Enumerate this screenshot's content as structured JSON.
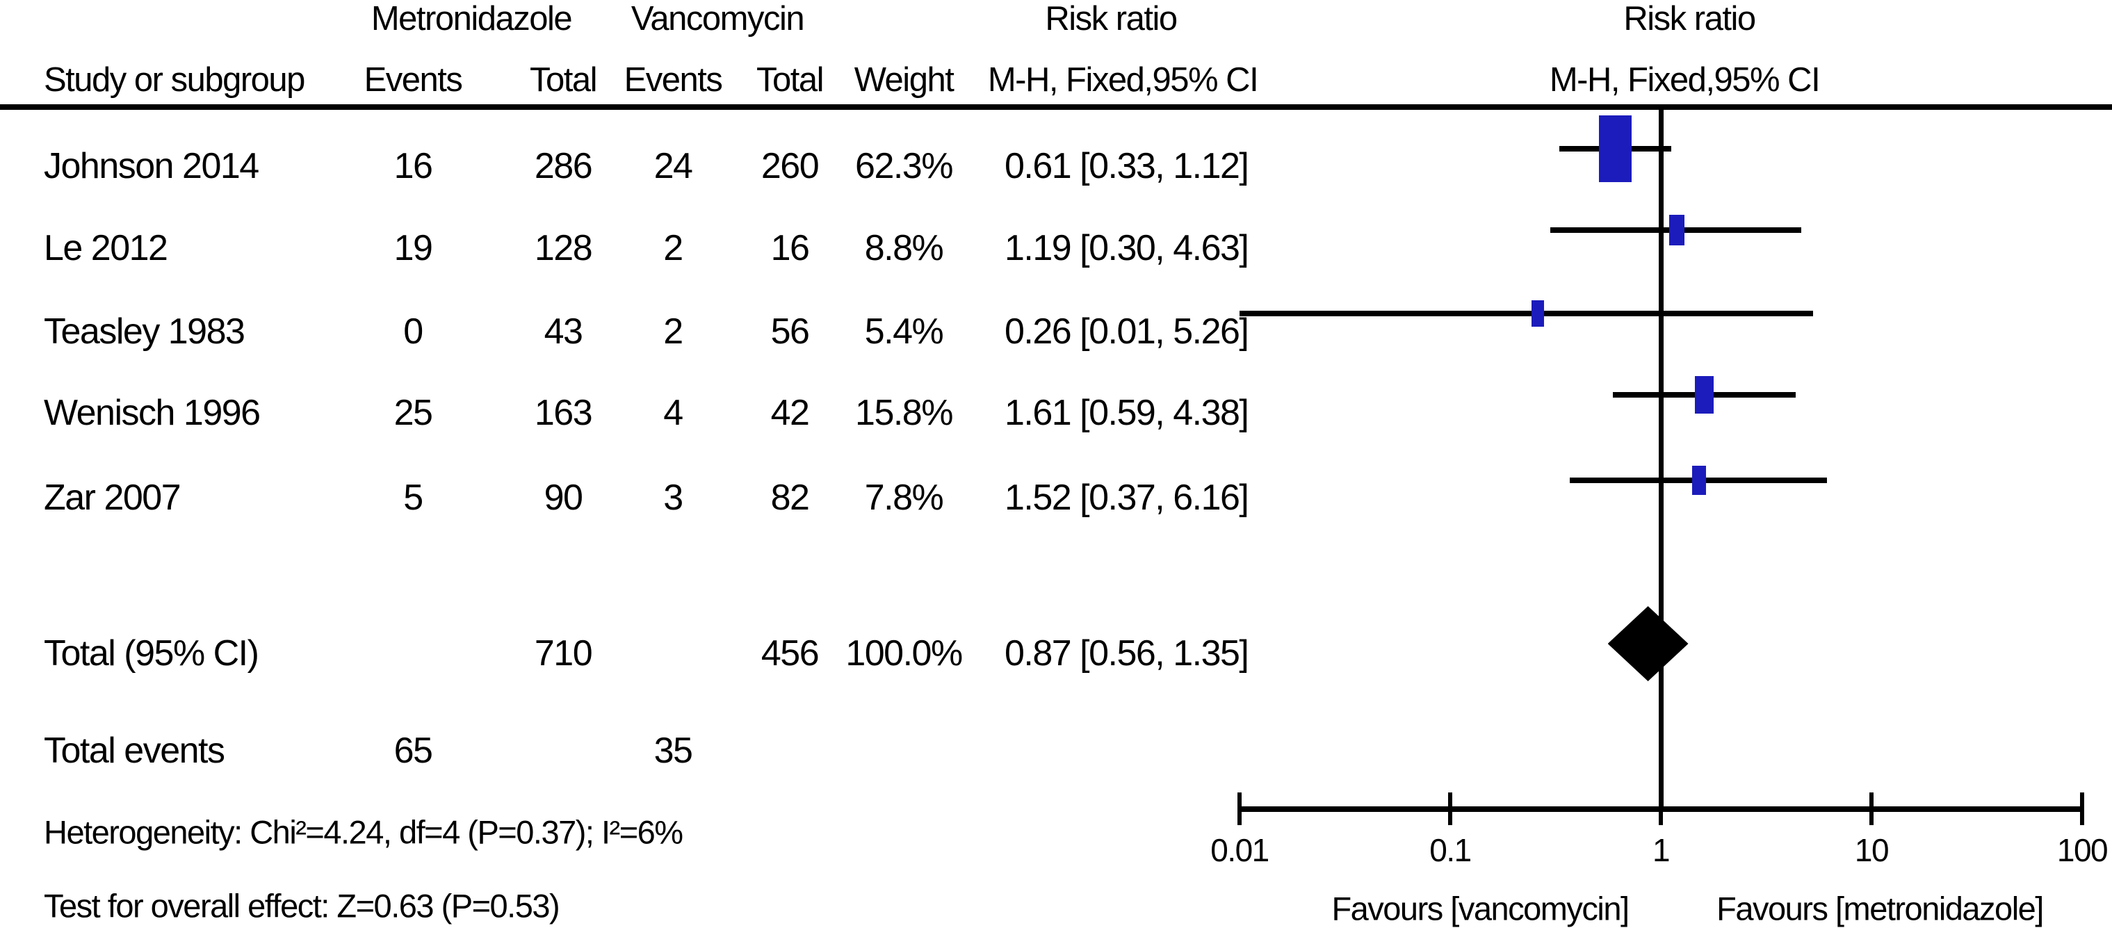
{
  "header": {
    "group1": "Metronidazole",
    "group2": "Vancomycin",
    "risk_ratio": "Risk ratio",
    "study": "Study or subgroup",
    "events": "Events",
    "total": "Total",
    "weight": "Weight",
    "mh_ci": "M-H, Fixed,95% CI"
  },
  "rows": [
    {
      "study": "Johnson 2014",
      "events_t": "16",
      "total_t": "286",
      "events_c": "24",
      "total_c": "260",
      "weight": "62.3%",
      "ci": "0.61 [0.33, 1.12]"
    },
    {
      "study": "Le 2012",
      "events_t": "19",
      "total_t": "128",
      "events_c": "2",
      "total_c": "16",
      "weight": "8.8%",
      "ci": "1.19 [0.30, 4.63]"
    },
    {
      "study": "Teasley 1983",
      "events_t": "0",
      "total_t": "43",
      "events_c": "2",
      "total_c": "56",
      "weight": "5.4%",
      "ci": "0.26 [0.01, 5.26]"
    },
    {
      "study": "Wenisch 1996",
      "events_t": "25",
      "total_t": "163",
      "events_c": "4",
      "total_c": "42",
      "weight": "15.8%",
      "ci": "1.61 [0.59, 4.38]"
    },
    {
      "study": "Zar 2007",
      "events_t": "5",
      "total_t": "90",
      "events_c": "3",
      "total_c": "82",
      "weight": "7.8%",
      "ci": "1.52 [0.37, 6.16]"
    }
  ],
  "totals": {
    "label": "Total (95% CI)",
    "total_t": "710",
    "total_c": "456",
    "weight": "100.0%",
    "ci": "0.87 [0.56, 1.35]"
  },
  "total_events": {
    "label": "Total events",
    "treat": "65",
    "ctrl": "35"
  },
  "footnotes": {
    "heterogeneity": "Heterogeneity: Chi²=4.24, df=4 (P=0.37); I²=6%",
    "overall_effect": "Test for overall effect: Z=0.63 (P=0.53)"
  },
  "axis": {
    "ticks": [
      "0.01",
      "0.1",
      "1",
      "10",
      "100"
    ],
    "favours_left": "Favours [vancomycin]",
    "favours_right": "Favours [metronidazole]"
  },
  "colors": {
    "marker_blue": "#1c1cbc",
    "line_black": "#000000"
  },
  "chart_data": {
    "type": "forest",
    "effect_measure": "Risk ratio (M-H, Fixed, 95% CI)",
    "x_scale": "log10",
    "x_range": [
      0.01,
      100
    ],
    "x_ticks": [
      0.01,
      0.1,
      1,
      10,
      100
    ],
    "null_line": 1,
    "studies": [
      {
        "name": "Johnson 2014",
        "events_treat": 16,
        "total_treat": 286,
        "events_ctrl": 24,
        "total_ctrl": 260,
        "weight_pct": 62.3,
        "rr": 0.61,
        "ci_low": 0.33,
        "ci_high": 1.12
      },
      {
        "name": "Le 2012",
        "events_treat": 19,
        "total_treat": 128,
        "events_ctrl": 2,
        "total_ctrl": 16,
        "weight_pct": 8.8,
        "rr": 1.19,
        "ci_low": 0.3,
        "ci_high": 4.63
      },
      {
        "name": "Teasley 1983",
        "events_treat": 0,
        "total_treat": 43,
        "events_ctrl": 2,
        "total_ctrl": 56,
        "weight_pct": 5.4,
        "rr": 0.26,
        "ci_low": 0.01,
        "ci_high": 5.26
      },
      {
        "name": "Wenisch 1996",
        "events_treat": 25,
        "total_treat": 163,
        "events_ctrl": 4,
        "total_ctrl": 42,
        "weight_pct": 15.8,
        "rr": 1.61,
        "ci_low": 0.59,
        "ci_high": 4.38
      },
      {
        "name": "Zar 2007",
        "events_treat": 5,
        "total_treat": 90,
        "events_ctrl": 3,
        "total_ctrl": 82,
        "weight_pct": 7.8,
        "rr": 1.52,
        "ci_low": 0.37,
        "ci_high": 6.16
      }
    ],
    "total": {
      "label": "Total (95% CI)",
      "total_treat": 710,
      "total_ctrl": 456,
      "events_treat": 65,
      "events_ctrl": 35,
      "weight_pct": 100.0,
      "rr": 0.87,
      "ci_low": 0.56,
      "ci_high": 1.35
    },
    "heterogeneity": {
      "chi2": 4.24,
      "df": 4,
      "p": 0.37,
      "i2_pct": 6
    },
    "overall_effect": {
      "z": 0.63,
      "p": 0.53
    },
    "favours": [
      "Favours [vancomycin]",
      "Favours [metronidazole]"
    ]
  }
}
